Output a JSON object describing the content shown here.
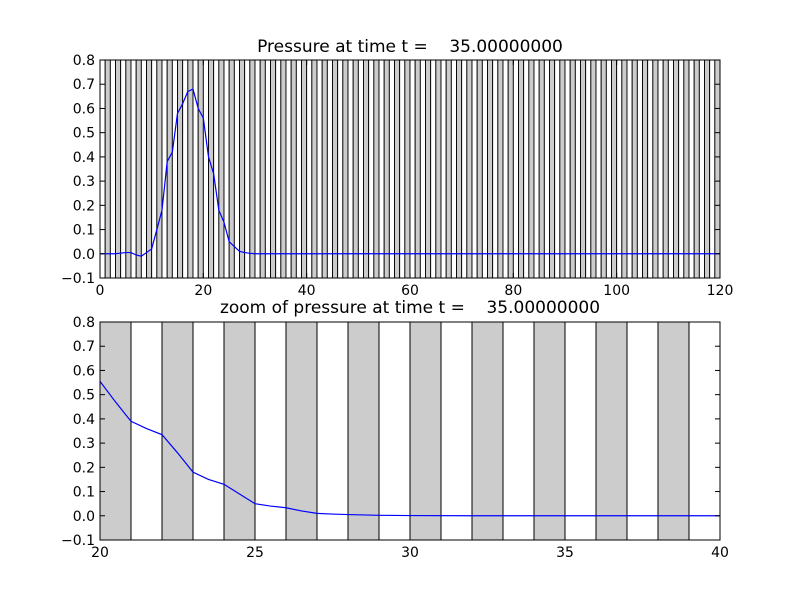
{
  "chart_data": [
    {
      "type": "line",
      "title": "Pressure at time t =    35.00000000",
      "xlabel": "",
      "ylabel": "",
      "xlim": [
        0,
        120
      ],
      "ylim": [
        -0.1,
        0.8
      ],
      "xticks": [
        0,
        20,
        40,
        60,
        80,
        100,
        120
      ],
      "xtick_labels": [
        "0",
        "20",
        "40",
        "60",
        "80",
        "100",
        "120"
      ],
      "yticks": [
        -0.1,
        0.0,
        0.1,
        0.2,
        0.3,
        0.4,
        0.5,
        0.6,
        0.7,
        0.8
      ],
      "ytick_labels": [
        "−0.1",
        "0.0",
        "0.1",
        "0.2",
        "0.3",
        "0.4",
        "0.5",
        "0.6",
        "0.7",
        "0.8"
      ],
      "grid": false,
      "background": "alternating vertical bands of width 1, shaded on odd-start intervals",
      "band_color": "#cccccc",
      "line_color": "#0000ff",
      "series": [
        {
          "x": [
            0,
            3,
            5,
            6,
            7,
            8,
            9,
            10,
            11,
            12,
            13,
            14,
            15,
            16,
            17,
            18,
            19,
            20,
            21,
            22,
            23,
            24,
            25,
            26,
            27,
            28,
            29,
            30,
            40,
            60,
            80,
            100,
            120
          ],
          "y": [
            0.0,
            0.0,
            0.005,
            0.005,
            -0.005,
            -0.01,
            0.005,
            0.02,
            0.1,
            0.18,
            0.38,
            0.42,
            0.58,
            0.62,
            0.67,
            0.68,
            0.6,
            0.56,
            0.4,
            0.33,
            0.18,
            0.13,
            0.05,
            0.03,
            0.01,
            0.005,
            0.002,
            0.0,
            0.0,
            0.0,
            0.0,
            0.0,
            0.0
          ]
        }
      ]
    },
    {
      "type": "line",
      "title": "zoom of pressure at time t =    35.00000000",
      "xlabel": "",
      "ylabel": "",
      "xlim": [
        20,
        40
      ],
      "ylim": [
        -0.1,
        0.8
      ],
      "xticks": [
        20,
        25,
        30,
        35,
        40
      ],
      "xtick_labels": [
        "20",
        "25",
        "30",
        "35",
        "40"
      ],
      "yticks": [
        -0.1,
        0.0,
        0.1,
        0.2,
        0.3,
        0.4,
        0.5,
        0.6,
        0.7,
        0.8
      ],
      "ytick_labels": [
        "−0.1",
        "0.0",
        "0.1",
        "0.2",
        "0.3",
        "0.4",
        "0.5",
        "0.6",
        "0.7",
        "0.8"
      ],
      "grid": false,
      "background": "alternating vertical bands of width 1, shaded on even-start intervals",
      "band_color": "#cccccc",
      "line_color": "#0000ff",
      "series": [
        {
          "x": [
            20,
            20.5,
            21,
            21.5,
            22,
            22.5,
            23,
            23.5,
            24,
            24.5,
            25,
            25.5,
            26,
            26.5,
            27,
            27.5,
            28,
            29,
            30,
            32,
            34,
            36,
            38,
            40
          ],
          "y": [
            0.555,
            0.47,
            0.39,
            0.36,
            0.335,
            0.26,
            0.18,
            0.15,
            0.13,
            0.09,
            0.05,
            0.04,
            0.033,
            0.02,
            0.01,
            0.007,
            0.005,
            0.002,
            0.001,
            0.0,
            0.0,
            0.0,
            0.0,
            0.0
          ]
        }
      ]
    }
  ]
}
